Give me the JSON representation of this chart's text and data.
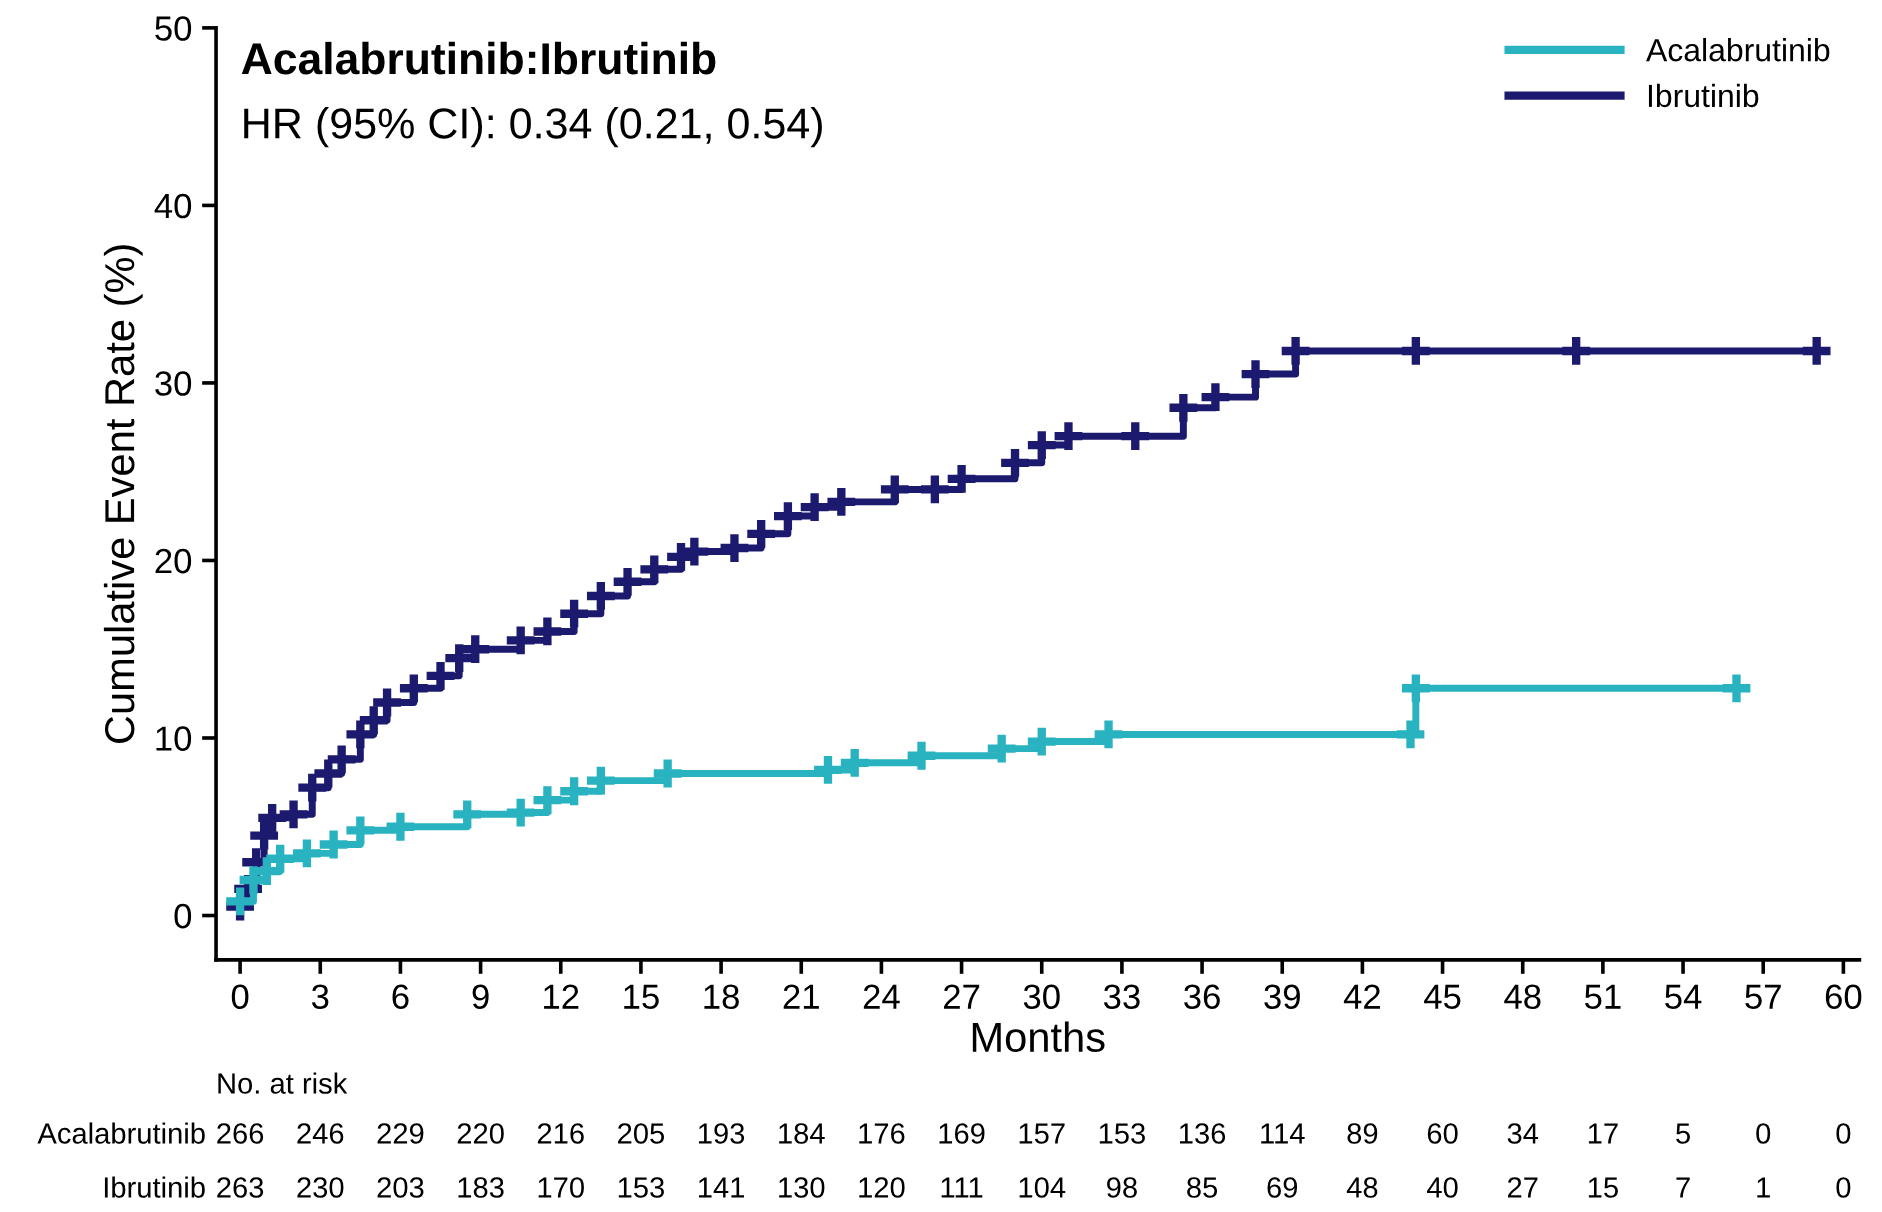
{
  "chart_data": {
    "type": "step",
    "title": "Acalabrutinib:Ibrutinib",
    "subtitle": "HR (95% CI): 0.34 (0.21, 0.54)",
    "xlabel": "Months",
    "ylabel": "Cumulative Event Rate (%)",
    "xlim": [
      -0.9,
      60.6
    ],
    "ylim": [
      -2.5,
      50
    ],
    "xticks": [
      0,
      3,
      6,
      9,
      12,
      15,
      18,
      21,
      24,
      27,
      30,
      33,
      36,
      39,
      42,
      45,
      48,
      51,
      54,
      57,
      60
    ],
    "yticks": [
      0,
      10,
      20,
      30,
      40,
      50
    ],
    "grid": false,
    "legend": "top right",
    "marker": "cross",
    "line_style": "solid",
    "series": [
      {
        "name": "Acalabrutinib",
        "color": "#29b3c1",
        "x": [
          0,
          0.5,
          1,
          1.5,
          2.5,
          3.5,
          4.5,
          6,
          8.5,
          10.5,
          11.5,
          12.5,
          13.5,
          16,
          22,
          23,
          25.5,
          28.5,
          30,
          32.5,
          43.8,
          44,
          56
        ],
        "values": [
          0.8,
          2,
          2.5,
          3.2,
          3.5,
          4,
          4.8,
          5,
          5.7,
          5.8,
          6.5,
          7,
          7.6,
          8,
          8.2,
          8.6,
          9,
          9.4,
          9.8,
          10.2,
          10.2,
          12.8,
          12.8
        ]
      },
      {
        "name": "Ibrutinib",
        "color": "#1c1a6e",
        "x": [
          0,
          0.3,
          0.6,
          0.9,
          1.2,
          2,
          2.7,
          3.3,
          3.8,
          4.5,
          5,
          5.5,
          6.5,
          7.5,
          8.2,
          8.8,
          10.5,
          11.5,
          12.5,
          13.5,
          14.5,
          15.5,
          16.5,
          17,
          18.5,
          19.5,
          20.5,
          21.5,
          22.5,
          24.5,
          26,
          27,
          29,
          30,
          31,
          33.5,
          35.3,
          36.5,
          38,
          39.5,
          44,
          50,
          59
        ],
        "values": [
          0.5,
          1.5,
          3,
          4.5,
          5.5,
          5.7,
          7.2,
          8,
          8.8,
          10.2,
          11,
          12,
          12.8,
          13.5,
          14.5,
          15,
          15.5,
          16,
          17,
          18,
          18.8,
          19.5,
          20.2,
          20.5,
          20.7,
          21.5,
          22.5,
          23,
          23.3,
          24,
          24,
          24.6,
          25.5,
          26.5,
          27,
          27,
          28.6,
          29.2,
          30.5,
          31.8,
          31.8,
          31.8,
          31.8
        ]
      }
    ],
    "annotations": [
      "No. at risk",
      "Acalabrutinib",
      "266",
      "246",
      "229",
      "220",
      "216",
      "205",
      "193",
      "184",
      "176",
      "169",
      "157",
      "153",
      "136",
      "114",
      "89",
      "60",
      "34",
      "17",
      "5",
      "0",
      "0",
      "Ibrutinib",
      "263",
      "230",
      "203",
      "183",
      "170",
      "153",
      "141",
      "130",
      "120",
      "111",
      "104",
      "98",
      "85",
      "69",
      "48",
      "40",
      "27",
      "15",
      "7",
      "1",
      "0"
    ]
  }
}
